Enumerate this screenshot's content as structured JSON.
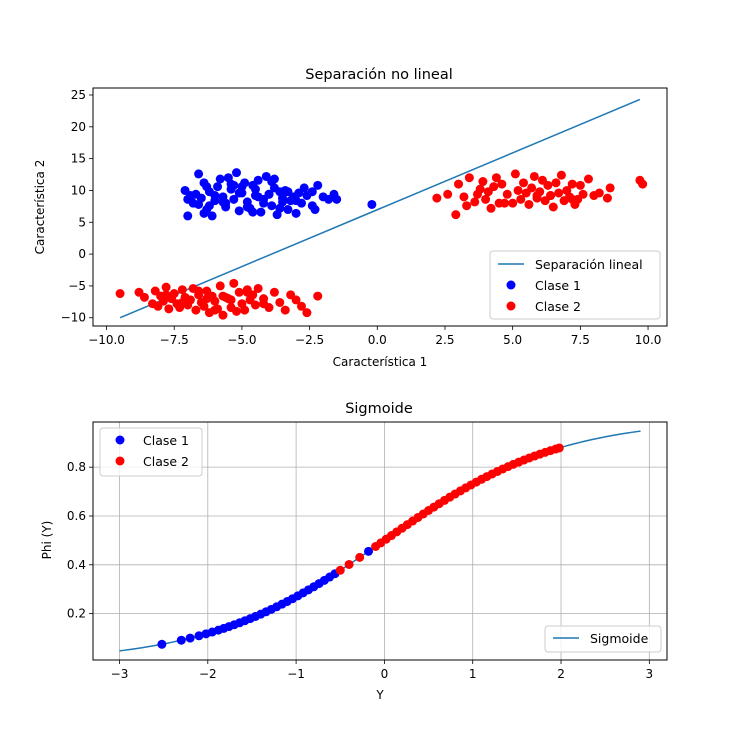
{
  "chart_data": [
    {
      "type": "scatter",
      "title": "Separación no lineal",
      "xlabel": "Característica 1",
      "ylabel": "Característica 2",
      "xlim": [
        -10.5,
        10.7
      ],
      "ylim": [
        -11.3,
        26.1
      ],
      "xticks": [
        -10,
        -7.5,
        -5,
        -2.5,
        0,
        2.5,
        5,
        7.5,
        10
      ],
      "xtick_labels": [
        "−10.0",
        "−7.5",
        "−5.0",
        "−2.5",
        "0.0",
        "2.5",
        "5.0",
        "7.5",
        "10.0"
      ],
      "yticks": [
        -10,
        -5,
        0,
        5,
        10,
        15,
        20,
        25
      ],
      "ytick_labels": [
        "−10",
        "−5",
        "0",
        "5",
        "10",
        "15",
        "20",
        "25"
      ],
      "grid": false,
      "legend": "lower-right",
      "series": [
        {
          "name": "Separación lineal",
          "kind": "line",
          "color": "#1f77b4",
          "x": [
            -9.5,
            9.7
          ],
          "y": [
            -10.0,
            24.3
          ]
        },
        {
          "name": "Clase 1",
          "kind": "points",
          "color": "#0000ff",
          "x": [
            -7.1,
            -7.0,
            -6.9,
            -6.8,
            -6.7,
            -6.6,
            -6.5,
            -6.4,
            -6.3,
            -6.2,
            -6.1,
            -6.0,
            -5.9,
            -5.8,
            -5.7,
            -5.6,
            -5.5,
            -5.4,
            -5.3,
            -5.2,
            -5.1,
            -5.0,
            -4.9,
            -4.8,
            -4.7,
            -4.6,
            -4.5,
            -4.4,
            -4.3,
            -4.2,
            -4.1,
            -4.0,
            -3.9,
            -3.8,
            -3.7,
            -3.6,
            -3.5,
            -3.4,
            -3.3,
            -3.2,
            -3.1,
            -3.0,
            -2.9,
            -2.8,
            -2.6,
            -2.4,
            -2.2,
            -2.0,
            -1.8,
            -1.6,
            -6.9,
            -6.6,
            -6.3,
            -6.0,
            -5.7,
            -5.4,
            -5.1,
            -4.8,
            -4.5,
            -4.2,
            -3.9,
            -3.6,
            -3.3,
            -3.0,
            -2.7,
            -2.4,
            -5.6,
            -5.0,
            -4.4,
            -3.8,
            -6.2,
            -4.6,
            -3.5,
            -5.3,
            -4.0,
            -1.5,
            -0.2,
            -6.4,
            -2.3,
            -7.0
          ],
          "y": [
            10.0,
            6.0,
            9.2,
            8.0,
            9.4,
            12.6,
            8.8,
            6.4,
            7.0,
            9.8,
            6.0,
            8.4,
            10.6,
            11.8,
            9.0,
            7.4,
            12.0,
            10.2,
            8.6,
            12.8,
            6.8,
            9.6,
            11.2,
            8.2,
            7.2,
            10.8,
            9.2,
            11.6,
            6.6,
            8.0,
            12.2,
            9.4,
            7.6,
            10.4,
            6.2,
            9.8,
            8.8,
            10.0,
            7.0,
            8.4,
            9.0,
            6.4,
            9.6,
            8.0,
            9.2,
            7.6,
            10.8,
            9.0,
            8.6,
            9.4,
            9.0,
            7.8,
            10.6,
            9.2,
            8.2,
            11.0,
            9.6,
            7.4,
            10.2,
            8.6,
            11.4,
            7.2,
            9.8,
            8.4,
            10.4,
            9.8,
            8.0,
            10.6,
            9.0,
            11.8,
            7.6,
            6.6,
            8.2,
            10.8,
            9.4,
            8.6,
            7.8,
            11.2,
            7.0,
            8.6
          ]
        },
        {
          "name": "Clase 2",
          "kind": "points",
          "color": "#ff0000",
          "x": [
            -9.5,
            -8.8,
            -8.6,
            -8.3,
            -8.2,
            -8.1,
            -8.0,
            -7.9,
            -7.8,
            -7.7,
            -7.6,
            -7.5,
            -7.4,
            -7.3,
            -7.2,
            -7.1,
            -7.0,
            -6.9,
            -6.8,
            -6.7,
            -6.6,
            -6.5,
            -6.4,
            -6.3,
            -6.2,
            -6.1,
            -6.0,
            -5.9,
            -5.8,
            -5.7,
            -5.6,
            -5.5,
            -5.4,
            -5.3,
            -5.2,
            -5.1,
            -5.0,
            -4.9,
            -4.8,
            -4.7,
            -4.6,
            -4.5,
            -4.4,
            -4.2,
            -4.0,
            -3.8,
            -3.6,
            -3.4,
            -3.2,
            -3.0,
            -2.8,
            -2.6,
            -2.2,
            -7.8,
            -7.2,
            -6.6,
            -6.0,
            -5.4,
            -4.8,
            -4.2,
            -6.3,
            -5.7,
            2.2,
            2.6,
            2.9,
            3.0,
            3.2,
            3.4,
            3.6,
            3.8,
            3.9,
            4.0,
            4.1,
            4.2,
            4.3,
            4.4,
            4.5,
            4.6,
            4.8,
            5.0,
            5.1,
            5.2,
            5.3,
            5.4,
            5.5,
            5.6,
            5.7,
            5.8,
            5.9,
            6.0,
            6.1,
            6.2,
            6.3,
            6.4,
            6.5,
            6.6,
            6.7,
            6.8,
            6.9,
            7.0,
            7.1,
            7.2,
            7.3,
            7.4,
            7.5,
            7.6,
            7.8,
            8.0,
            8.2,
            8.5,
            8.6,
            9.7,
            9.8,
            3.7,
            4.7,
            5.9,
            7.2,
            3.3,
            6.4
          ],
          "y": [
            -6.2,
            -6.0,
            -6.8,
            -7.8,
            -5.8,
            -8.2,
            -6.6,
            -7.4,
            -5.2,
            -8.6,
            -7.0,
            -6.2,
            -7.8,
            -8.4,
            -5.6,
            -6.8,
            -8.0,
            -7.2,
            -5.4,
            -8.8,
            -6.4,
            -7.6,
            -8.2,
            -5.8,
            -9.2,
            -6.6,
            -7.4,
            -8.6,
            -5.0,
            -9.6,
            -6.8,
            -7.0,
            -8.4,
            -4.6,
            -9.0,
            -6.0,
            -7.8,
            -8.8,
            -5.6,
            -7.2,
            -6.4,
            -8.0,
            -5.4,
            -7.0,
            -8.4,
            -6.0,
            -7.6,
            -8.8,
            -6.4,
            -7.2,
            -8.2,
            -9.2,
            -6.6,
            -6.4,
            -7.6,
            -5.8,
            -8.8,
            -7.2,
            -6.0,
            -7.8,
            -7.0,
            -6.6,
            8.8,
            9.4,
            6.2,
            11.0,
            9.0,
            12.0,
            8.2,
            10.2,
            11.4,
            8.6,
            9.8,
            7.2,
            10.6,
            12.0,
            8.0,
            11.0,
            9.4,
            8.0,
            12.6,
            10.0,
            8.6,
            11.2,
            9.6,
            7.8,
            10.4,
            12.2,
            8.8,
            9.8,
            11.6,
            8.4,
            10.8,
            9.2,
            7.4,
            11.2,
            9.6,
            12.4,
            8.4,
            10.0,
            9.0,
            11.0,
            7.8,
            8.6,
            10.8,
            9.4,
            11.8,
            9.2,
            9.6,
            8.8,
            10.4,
            11.6,
            11.0,
            9.4,
            8.0,
            9.2,
            8.6,
            7.6,
            9.2
          ]
        }
      ]
    },
    {
      "type": "line",
      "title": "Sigmoide",
      "xlabel": "Y",
      "ylabel": "Phi (Y)",
      "xlim": [
        -3.3,
        3.2
      ],
      "ylim": [
        0.01,
        0.985
      ],
      "xticks": [
        -3,
        -2,
        -1,
        0,
        1,
        2,
        3
      ],
      "xtick_labels": [
        "−3",
        "−2",
        "−1",
        "0",
        "1",
        "2",
        "3"
      ],
      "yticks": [
        0.2,
        0.4,
        0.6,
        0.8
      ],
      "ytick_labels": [
        "0.2",
        "0.4",
        "0.6",
        "0.8"
      ],
      "grid": true,
      "legend": "lower-right",
      "legend2": "upper-left",
      "series": [
        {
          "name": "Sigmoide",
          "kind": "curve",
          "color": "#1f77b4",
          "function": "1/(1+exp(-x))",
          "x_range": [
            -3.0,
            2.9
          ]
        },
        {
          "name": "Clase 1",
          "kind": "points",
          "color": "#0000ff",
          "x": [
            -2.52,
            -2.3,
            -2.2,
            -2.1,
            -2.02,
            -1.95,
            -1.88,
            -1.82,
            -1.76,
            -1.7,
            -1.64,
            -1.58,
            -1.52,
            -1.46,
            -1.4,
            -1.34,
            -1.28,
            -1.22,
            -1.16,
            -1.1,
            -1.04,
            -0.98,
            -0.92,
            -0.86,
            -0.8,
            -0.74,
            -0.68,
            -0.62,
            -0.56,
            -0.18
          ]
        },
        {
          "name": "Clase 2",
          "kind": "points",
          "color": "#ff0000",
          "x": [
            -0.5,
            -0.4,
            -0.28,
            -0.1,
            -0.04,
            0.02,
            0.08,
            0.14,
            0.2,
            0.26,
            0.32,
            0.38,
            0.44,
            0.5,
            0.56,
            0.62,
            0.68,
            0.74,
            0.8,
            0.86,
            0.92,
            0.98,
            1.04,
            1.1,
            1.16,
            1.22,
            1.28,
            1.34,
            1.4,
            1.46,
            1.52,
            1.58,
            1.64,
            1.7,
            1.76,
            1.82,
            1.88,
            1.94,
            1.98
          ]
        }
      ]
    }
  ]
}
